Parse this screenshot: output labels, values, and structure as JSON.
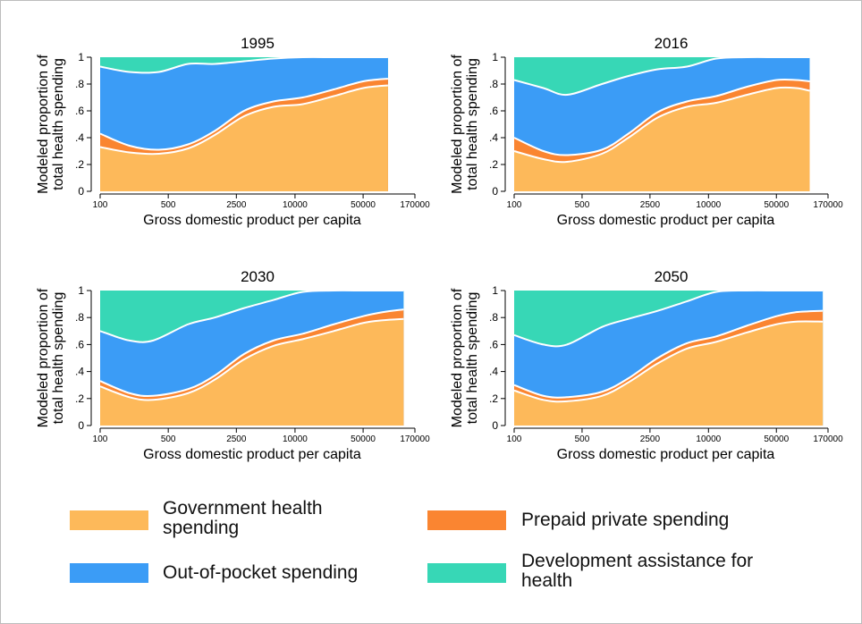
{
  "colors": {
    "government": "#fdb95a",
    "prepaid": "#fa8531",
    "oop": "#3b9cf6",
    "dah": "#37d7b6",
    "boundary": "#ffffff"
  },
  "legend": [
    {
      "key": "government",
      "label": "Government health\nspending",
      "label_line1": "Government health",
      "label_line2": "spending"
    },
    {
      "key": "prepaid",
      "label": "Prepaid private spending",
      "label_line1": "Prepaid private spending",
      "label_line2": ""
    },
    {
      "key": "oop",
      "label": "Out-of-pocket spending",
      "label_line1": "Out-of-pocket spending",
      "label_line2": ""
    },
    {
      "key": "dah",
      "label": "Development assistance for\nhealth",
      "label_line1": "Development assistance for",
      "label_line2": "health"
    }
  ],
  "chart_data": [
    {
      "type": "area",
      "title": "1995",
      "xlabel": "Gross domestic product per capita",
      "ylabel": [
        "Modeled proportion of",
        "total health spending"
      ],
      "x_scale": "log",
      "xlim": [
        100,
        170000
      ],
      "ylim": [
        0,
        1
      ],
      "xticks": [
        100,
        500,
        2500,
        10000,
        50000,
        170000
      ],
      "yticks": [
        0,
        0.2,
        0.4,
        0.6,
        0.8,
        1
      ],
      "ytick_labels": [
        "0",
        ".2",
        ".4",
        ".6",
        ".8",
        "1"
      ],
      "x": [
        100,
        200,
        400,
        800,
        1500,
        3000,
        6000,
        12000,
        25000,
        50000,
        90000
      ],
      "series": [
        {
          "key": "government",
          "name": "Government health spending",
          "values": [
            0.33,
            0.29,
            0.28,
            0.32,
            0.42,
            0.56,
            0.63,
            0.65,
            0.71,
            0.77,
            0.79
          ]
        },
        {
          "key": "prepaid",
          "name": "Prepaid private spending",
          "values": [
            0.1,
            0.05,
            0.03,
            0.03,
            0.03,
            0.04,
            0.04,
            0.05,
            0.05,
            0.05,
            0.05
          ]
        },
        {
          "key": "oop",
          "name": "Out-of-pocket spending",
          "values": [
            0.5,
            0.55,
            0.58,
            0.6,
            0.5,
            0.37,
            0.32,
            0.3,
            0.24,
            0.18,
            0.16
          ]
        },
        {
          "key": "dah",
          "name": "Development assistance for health",
          "values": [
            0.07,
            0.11,
            0.11,
            0.05,
            0.05,
            0.03,
            0.01,
            0.0,
            0.0,
            0.0,
            0.0
          ]
        }
      ]
    },
    {
      "type": "area",
      "title": "2016",
      "xlabel": "Gross domestic product per capita",
      "ylabel": [
        "Modeled proportion of",
        "total health spending"
      ],
      "x_scale": "log",
      "xlim": [
        100,
        170000
      ],
      "ylim": [
        0,
        1
      ],
      "xticks": [
        100,
        500,
        2500,
        10000,
        50000,
        170000
      ],
      "yticks": [
        0,
        0.2,
        0.4,
        0.6,
        0.8,
        1
      ],
      "ytick_labels": [
        "0",
        ".2",
        ".4",
        ".6",
        ".8",
        "1"
      ],
      "x": [
        100,
        200,
        350,
        800,
        1500,
        3000,
        6000,
        12000,
        25000,
        50000,
        80000,
        110000
      ],
      "series": [
        {
          "key": "government",
          "name": "Government health spending",
          "values": [
            0.3,
            0.24,
            0.22,
            0.28,
            0.4,
            0.55,
            0.63,
            0.66,
            0.72,
            0.77,
            0.77,
            0.75
          ]
        },
        {
          "key": "prepaid",
          "name": "Prepaid private spending",
          "values": [
            0.1,
            0.06,
            0.05,
            0.03,
            0.03,
            0.04,
            0.04,
            0.05,
            0.06,
            0.06,
            0.06,
            0.07
          ]
        },
        {
          "key": "oop",
          "name": "Out-of-pocket spending",
          "values": [
            0.43,
            0.47,
            0.45,
            0.49,
            0.43,
            0.32,
            0.26,
            0.28,
            0.22,
            0.17,
            0.17,
            0.18
          ]
        },
        {
          "key": "dah",
          "name": "Development assistance for health",
          "values": [
            0.17,
            0.23,
            0.28,
            0.2,
            0.14,
            0.09,
            0.07,
            0.01,
            0.0,
            0.0,
            0.0,
            0.0
          ]
        }
      ]
    },
    {
      "type": "area",
      "title": "2030",
      "xlabel": "Gross domestic product per capita",
      "ylabel": [
        "Modeled proportion of",
        "total health spending"
      ],
      "x_scale": "log",
      "xlim": [
        100,
        170000
      ],
      "ylim": [
        0,
        1
      ],
      "xticks": [
        100,
        500,
        2500,
        10000,
        50000,
        170000
      ],
      "yticks": [
        0,
        0.2,
        0.4,
        0.6,
        0.8,
        1
      ],
      "ytick_labels": [
        "0",
        ".2",
        ".4",
        ".6",
        ".8",
        "1"
      ],
      "x": [
        100,
        200,
        350,
        800,
        1500,
        3000,
        6000,
        12000,
        25000,
        50000,
        80000,
        130000
      ],
      "series": [
        {
          "key": "government",
          "name": "Government health spending",
          "values": [
            0.29,
            0.21,
            0.19,
            0.24,
            0.34,
            0.49,
            0.59,
            0.64,
            0.7,
            0.76,
            0.78,
            0.79
          ]
        },
        {
          "key": "prepaid",
          "name": "Prepaid private spending",
          "values": [
            0.04,
            0.03,
            0.03,
            0.03,
            0.03,
            0.04,
            0.04,
            0.04,
            0.05,
            0.05,
            0.06,
            0.07
          ]
        },
        {
          "key": "oop",
          "name": "Out-of-pocket spending",
          "values": [
            0.37,
            0.39,
            0.41,
            0.48,
            0.43,
            0.34,
            0.3,
            0.31,
            0.25,
            0.19,
            0.16,
            0.14
          ]
        },
        {
          "key": "dah",
          "name": "Development assistance for health",
          "values": [
            0.3,
            0.37,
            0.37,
            0.25,
            0.2,
            0.13,
            0.07,
            0.01,
            0.0,
            0.0,
            0.0,
            0.0
          ]
        }
      ]
    },
    {
      "type": "area",
      "title": "2050",
      "xlabel": "Gross domestic product per capita",
      "ylabel": [
        "Modeled proportion of",
        "total health spending"
      ],
      "x_scale": "log",
      "xlim": [
        100,
        170000
      ],
      "ylim": [
        0,
        1
      ],
      "xticks": [
        100,
        500,
        2500,
        10000,
        50000,
        170000
      ],
      "yticks": [
        0,
        0.2,
        0.4,
        0.6,
        0.8,
        1
      ],
      "ytick_labels": [
        "0",
        ".2",
        ".4",
        ".6",
        ".8",
        "1"
      ],
      "x": [
        100,
        200,
        350,
        800,
        1500,
        3000,
        6000,
        12000,
        25000,
        50000,
        80000,
        150000
      ],
      "series": [
        {
          "key": "government",
          "name": "Government health spending",
          "values": [
            0.26,
            0.19,
            0.18,
            0.22,
            0.32,
            0.46,
            0.57,
            0.62,
            0.69,
            0.75,
            0.77,
            0.77
          ]
        },
        {
          "key": "prepaid",
          "name": "Prepaid private spending",
          "values": [
            0.04,
            0.03,
            0.03,
            0.03,
            0.03,
            0.04,
            0.04,
            0.04,
            0.05,
            0.06,
            0.07,
            0.08
          ]
        },
        {
          "key": "oop",
          "name": "Out-of-pocket spending",
          "values": [
            0.37,
            0.38,
            0.39,
            0.48,
            0.44,
            0.35,
            0.31,
            0.33,
            0.26,
            0.19,
            0.16,
            0.15
          ]
        },
        {
          "key": "dah",
          "name": "Development assistance for health",
          "values": [
            0.33,
            0.4,
            0.4,
            0.27,
            0.21,
            0.15,
            0.08,
            0.01,
            0.0,
            0.0,
            0.0,
            0.0
          ]
        }
      ]
    }
  ]
}
